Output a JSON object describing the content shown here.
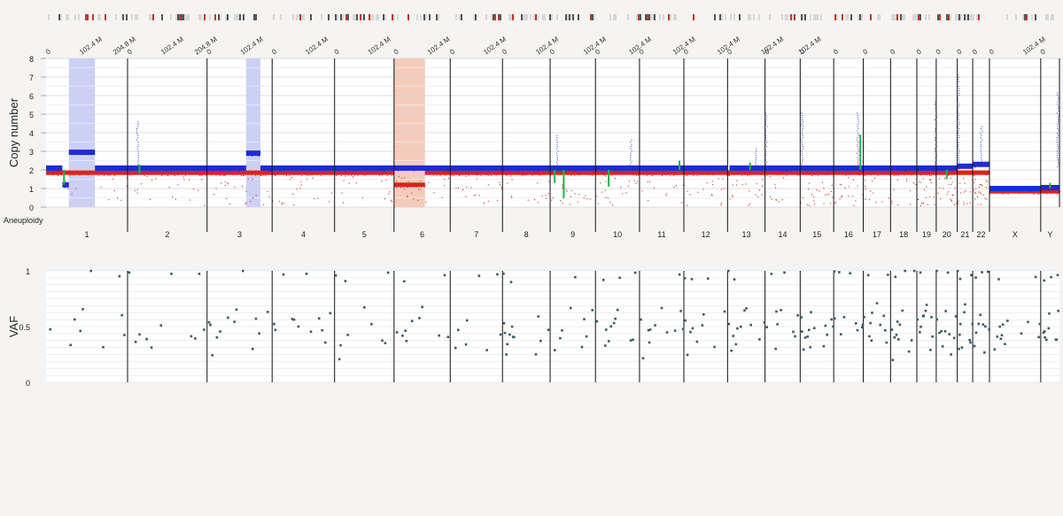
{
  "copy_number_plot": {
    "ylabel": "Copy number",
    "yticks": [
      "8",
      "7",
      "6",
      "5",
      "4",
      "3",
      "2",
      "1",
      "0"
    ],
    "row_label": "Aneuploidy"
  },
  "vaf_plot": {
    "ylabel": "VAF",
    "yticks": [
      "1",
      "0.5",
      "0"
    ]
  },
  "chart_data": [
    {
      "type": "scatter",
      "name": "copy-number",
      "ylabel": "Copy number",
      "ylim": [
        0,
        8
      ],
      "grid": true,
      "x_tick_labels": [
        "0",
        "102.4 M",
        "204.8 M"
      ],
      "chromosomes": [
        {
          "label": "1",
          "size": 248
        },
        {
          "label": "2",
          "size": 242
        },
        {
          "label": "3",
          "size": 198
        },
        {
          "label": "4",
          "size": 190
        },
        {
          "label": "5",
          "size": 181
        },
        {
          "label": "6",
          "size": 171
        },
        {
          "label": "7",
          "size": 159
        },
        {
          "label": "8",
          "size": 145
        },
        {
          "label": "9",
          "size": 138
        },
        {
          "label": "10",
          "size": 134
        },
        {
          "label": "11",
          "size": 135
        },
        {
          "label": "12",
          "size": 133
        },
        {
          "label": "13",
          "size": 114
        },
        {
          "label": "14",
          "size": 107
        },
        {
          "label": "15",
          "size": 102
        },
        {
          "label": "16",
          "size": 90
        },
        {
          "label": "17",
          "size": 83
        },
        {
          "label": "18",
          "size": 80
        },
        {
          "label": "19",
          "size": 59
        },
        {
          "label": "20",
          "size": 64
        },
        {
          "label": "21",
          "size": 47
        },
        {
          "label": "22",
          "size": 51
        },
        {
          "label": "X",
          "size": 156
        },
        {
          "label": "Y",
          "size": 57
        }
      ],
      "series": [
        {
          "color": "#1f2bd6",
          "baseline": [
            {
              "chrom": "1",
              "from": 0,
              "to": 0.2,
              "cn": 2.1
            },
            {
              "chrom": "1",
              "from": 0.2,
              "to": 0.28,
              "cn": 1.2
            },
            {
              "chrom": "1",
              "from": 0.28,
              "to": 0.6,
              "cn": 2.95
            },
            {
              "chrom": "1",
              "from": 0.6,
              "to": 1,
              "cn": 2.1
            },
            {
              "chrom": "2",
              "from": 0,
              "to": 1,
              "cn": 2.1
            },
            {
              "chrom": "3",
              "from": 0,
              "to": 0.6,
              "cn": 2.1
            },
            {
              "chrom": "3",
              "from": 0.6,
              "to": 0.82,
              "cn": 2.9
            },
            {
              "chrom": "3",
              "from": 0.82,
              "to": 1,
              "cn": 2.1
            },
            {
              "chrom": "4",
              "from": 0,
              "to": 1,
              "cn": 2.1
            },
            {
              "chrom": "5",
              "from": 0,
              "to": 1,
              "cn": 2.1
            },
            {
              "chrom": "6",
              "from": 0,
              "to": 1,
              "cn": 2.1
            },
            {
              "chrom": "7",
              "from": 0,
              "to": 1,
              "cn": 2.1
            },
            {
              "chrom": "8",
              "from": 0,
              "to": 1,
              "cn": 2.1
            },
            {
              "chrom": "9",
              "from": 0,
              "to": 1,
              "cn": 2.1
            },
            {
              "chrom": "10",
              "from": 0,
              "to": 1,
              "cn": 2.1
            },
            {
              "chrom": "11",
              "from": 0,
              "to": 1,
              "cn": 2.1
            },
            {
              "chrom": "12",
              "from": 0,
              "to": 1,
              "cn": 2.1
            },
            {
              "chrom": "13",
              "from": 0.05,
              "to": 1,
              "cn": 2.1
            },
            {
              "chrom": "14",
              "from": 0,
              "to": 1,
              "cn": 2.1
            },
            {
              "chrom": "15",
              "from": 0,
              "to": 1,
              "cn": 2.1
            },
            {
              "chrom": "16",
              "from": 0,
              "to": 1,
              "cn": 2.1
            },
            {
              "chrom": "17",
              "from": 0,
              "to": 1,
              "cn": 2.1
            },
            {
              "chrom": "18",
              "from": 0,
              "to": 1,
              "cn": 2.1
            },
            {
              "chrom": "19",
              "from": 0,
              "to": 1,
              "cn": 2.1
            },
            {
              "chrom": "20",
              "from": 0,
              "to": 1,
              "cn": 2.1
            },
            {
              "chrom": "21",
              "from": 0,
              "to": 1,
              "cn": 2.2
            },
            {
              "chrom": "22",
              "from": 0,
              "to": 1,
              "cn": 2.3
            },
            {
              "chrom": "X",
              "from": 0,
              "to": 1,
              "cn": 1.0
            },
            {
              "chrom": "Y",
              "from": 0,
              "to": 1,
              "cn": 1.05
            }
          ]
        },
        {
          "color": "#e0201b",
          "baseline": [
            {
              "chrom": "1",
              "from": 0,
              "to": 1,
              "cn": 1.85
            },
            {
              "chrom": "2",
              "from": 0,
              "to": 1,
              "cn": 1.85
            },
            {
              "chrom": "3",
              "from": 0,
              "to": 1,
              "cn": 1.85
            },
            {
              "chrom": "4",
              "from": 0,
              "to": 1,
              "cn": 1.85
            },
            {
              "chrom": "5",
              "from": 0,
              "to": 1,
              "cn": 1.85
            },
            {
              "chrom": "6",
              "from": 0,
              "to": 0.55,
              "cn": 1.2
            },
            {
              "chrom": "6",
              "from": 0.55,
              "to": 1,
              "cn": 1.85
            },
            {
              "chrom": "7",
              "from": 0,
              "to": 1,
              "cn": 1.85
            },
            {
              "chrom": "8",
              "from": 0,
              "to": 1,
              "cn": 1.85
            },
            {
              "chrom": "9",
              "from": 0,
              "to": 1,
              "cn": 1.85
            },
            {
              "chrom": "10",
              "from": 0,
              "to": 1,
              "cn": 1.85
            },
            {
              "chrom": "11",
              "from": 0,
              "to": 1,
              "cn": 1.85
            },
            {
              "chrom": "12",
              "from": 0,
              "to": 1,
              "cn": 1.85
            },
            {
              "chrom": "13",
              "from": 0,
              "to": 1,
              "cn": 1.85
            },
            {
              "chrom": "14",
              "from": 0,
              "to": 1,
              "cn": 1.85
            },
            {
              "chrom": "15",
              "from": 0,
              "to": 1,
              "cn": 1.85
            },
            {
              "chrom": "16",
              "from": 0,
              "to": 1,
              "cn": 1.85
            },
            {
              "chrom": "17",
              "from": 0,
              "to": 1,
              "cn": 1.85
            },
            {
              "chrom": "18",
              "from": 0,
              "to": 1,
              "cn": 1.85
            },
            {
              "chrom": "19",
              "from": 0,
              "to": 1,
              "cn": 1.85
            },
            {
              "chrom": "20",
              "from": 0,
              "to": 1,
              "cn": 1.85
            },
            {
              "chrom": "21",
              "from": 0,
              "to": 1,
              "cn": 1.85
            },
            {
              "chrom": "22",
              "from": 0,
              "to": 1,
              "cn": 1.85
            },
            {
              "chrom": "X",
              "from": 0,
              "to": 1,
              "cn": 0.85
            },
            {
              "chrom": "Y",
              "from": 0,
              "to": 1,
              "cn": 0.85
            }
          ]
        },
        {
          "color": "#22b34a",
          "segments": [
            {
              "chrom": "1",
              "at": 0.22,
              "cn": [
                1.2,
                2.0
              ]
            },
            {
              "chrom": "2",
              "at": 0.15,
              "cn": [
                1.8,
                2.3
              ]
            },
            {
              "chrom": "9",
              "at": 0.1,
              "cn": [
                1.3,
                2.0
              ]
            },
            {
              "chrom": "9",
              "at": 0.3,
              "cn": [
                0.5,
                2.0
              ]
            },
            {
              "chrom": "10",
              "at": 0.3,
              "cn": [
                1.1,
                2.0
              ]
            },
            {
              "chrom": "11",
              "at": 0.9,
              "cn": [
                2.0,
                2.5
              ]
            },
            {
              "chrom": "13",
              "at": 0.6,
              "cn": [
                2.0,
                2.4
              ]
            },
            {
              "chrom": "16",
              "at": 0.9,
              "cn": [
                2.0,
                3.9
              ]
            },
            {
              "chrom": "20",
              "at": 0.5,
              "cn": [
                1.5,
                2.0
              ]
            },
            {
              "chrom": "Y",
              "at": 0.5,
              "cn": [
                1.0,
                1.3
              ]
            }
          ]
        }
      ],
      "highlights": [
        {
          "chrom": "1",
          "from": 0.28,
          "to": 0.6,
          "color": "#c4c8f4"
        },
        {
          "chrom": "3",
          "from": 0.6,
          "to": 0.82,
          "color": "#c4c8f4"
        },
        {
          "chrom": "6",
          "from": 0,
          "to": 0.55,
          "color": "#f3c3b0"
        }
      ],
      "outliers": [
        {
          "chrom": "2",
          "at": 0.12,
          "cn": 4.7
        },
        {
          "chrom": "9",
          "at": 0.15,
          "cn": 4.0
        },
        {
          "chrom": "10",
          "at": 0.8,
          "cn": 3.7
        },
        {
          "chrom": "13",
          "at": 0.75,
          "cn": 3.2
        },
        {
          "chrom": "14",
          "at": 0.02,
          "cn": 5.1
        },
        {
          "chrom": "15",
          "at": 0.05,
          "cn": 5.1
        },
        {
          "chrom": "16",
          "at": 0.8,
          "cn": 5.2
        },
        {
          "chrom": "19",
          "at": 0.95,
          "cn": 5.8
        },
        {
          "chrom": "21",
          "at": 0.05,
          "cn": 7.2
        },
        {
          "chrom": "22",
          "at": 0.5,
          "cn": 4.4
        },
        {
          "chrom": "Y",
          "at": 0.9,
          "cn": 6.2
        }
      ]
    },
    {
      "type": "scatter",
      "name": "vaf",
      "ylabel": "VAF",
      "ylim": [
        0,
        1
      ],
      "grid": true,
      "points": [
        [
          0.02,
          0.98
        ],
        [
          0.03,
          0.55
        ],
        [
          0.05,
          0.48
        ],
        [
          0.08,
          0.25
        ],
        [
          0.1,
          0.32
        ],
        [
          0.15,
          0.45
        ],
        [
          0.18,
          0.95
        ],
        [
          0.2,
          0.48
        ],
        [
          0.22,
          0.38
        ],
        [
          0.24,
          0.43
        ],
        [
          0.26,
          0.5
        ],
        [
          0.3,
          0.35
        ],
        [
          0.32,
          0.6
        ],
        [
          0.35,
          0.55
        ],
        [
          0.42,
          0.5
        ],
        [
          0.45,
          0.62
        ],
        [
          0.5,
          0.7
        ],
        [
          0.55,
          0.98
        ],
        [
          0.62,
          0.48
        ],
        [
          0.7,
          0.3
        ],
        [
          0.75,
          0.55
        ],
        [
          0.8,
          0.42
        ],
        [
          0.85,
          0.38
        ],
        [
          0.9,
          0.97
        ],
        [
          0.93,
          0.6
        ],
        [
          0.96,
          0.45
        ],
        [
          0.98,
          0.52
        ]
      ]
    }
  ]
}
